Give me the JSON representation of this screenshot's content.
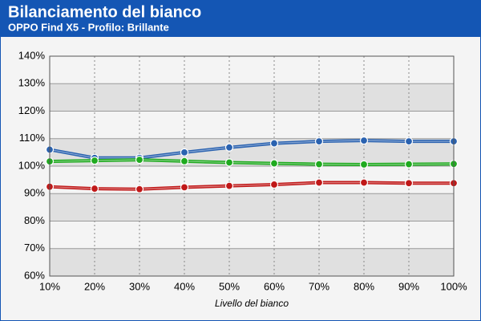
{
  "chart_data": {
    "type": "line",
    "title": "Bilanciamento del bianco",
    "subtitle": "OPPO Find X5 - Profilo: Brillante",
    "x_label": "Livello del bianco",
    "categories": [
      "10%",
      "20%",
      "30%",
      "40%",
      "50%",
      "60%",
      "70%",
      "80%",
      "90%",
      "100%"
    ],
    "series": [
      {
        "color": "#2a62b0",
        "values": [
          106,
          103,
          103,
          105,
          106.8,
          108.3,
          109,
          109.3,
          109,
          109
        ]
      },
      {
        "color": "#1faa1f",
        "values": [
          101.7,
          102,
          102.3,
          101.8,
          101.3,
          101,
          100.7,
          100.6,
          100.7,
          100.8
        ]
      },
      {
        "color": "#c01818",
        "values": [
          92.5,
          91.8,
          91.6,
          92.3,
          92.8,
          93.3,
          94,
          94,
          93.8,
          93.8
        ]
      }
    ],
    "ylim": [
      60,
      140
    ],
    "yticks": [
      {
        "value": 60,
        "label": "60%"
      },
      {
        "value": 70,
        "label": "70%"
      },
      {
        "value": 80,
        "label": "80%"
      },
      {
        "value": 90,
        "label": "90%"
      },
      {
        "value": 100,
        "label": "100%"
      },
      {
        "value": 110,
        "label": "110%"
      },
      {
        "value": 120,
        "label": "120%"
      },
      {
        "value": 130,
        "label": "130%"
      },
      {
        "value": 140,
        "label": "140%"
      }
    ],
    "grid": true
  }
}
